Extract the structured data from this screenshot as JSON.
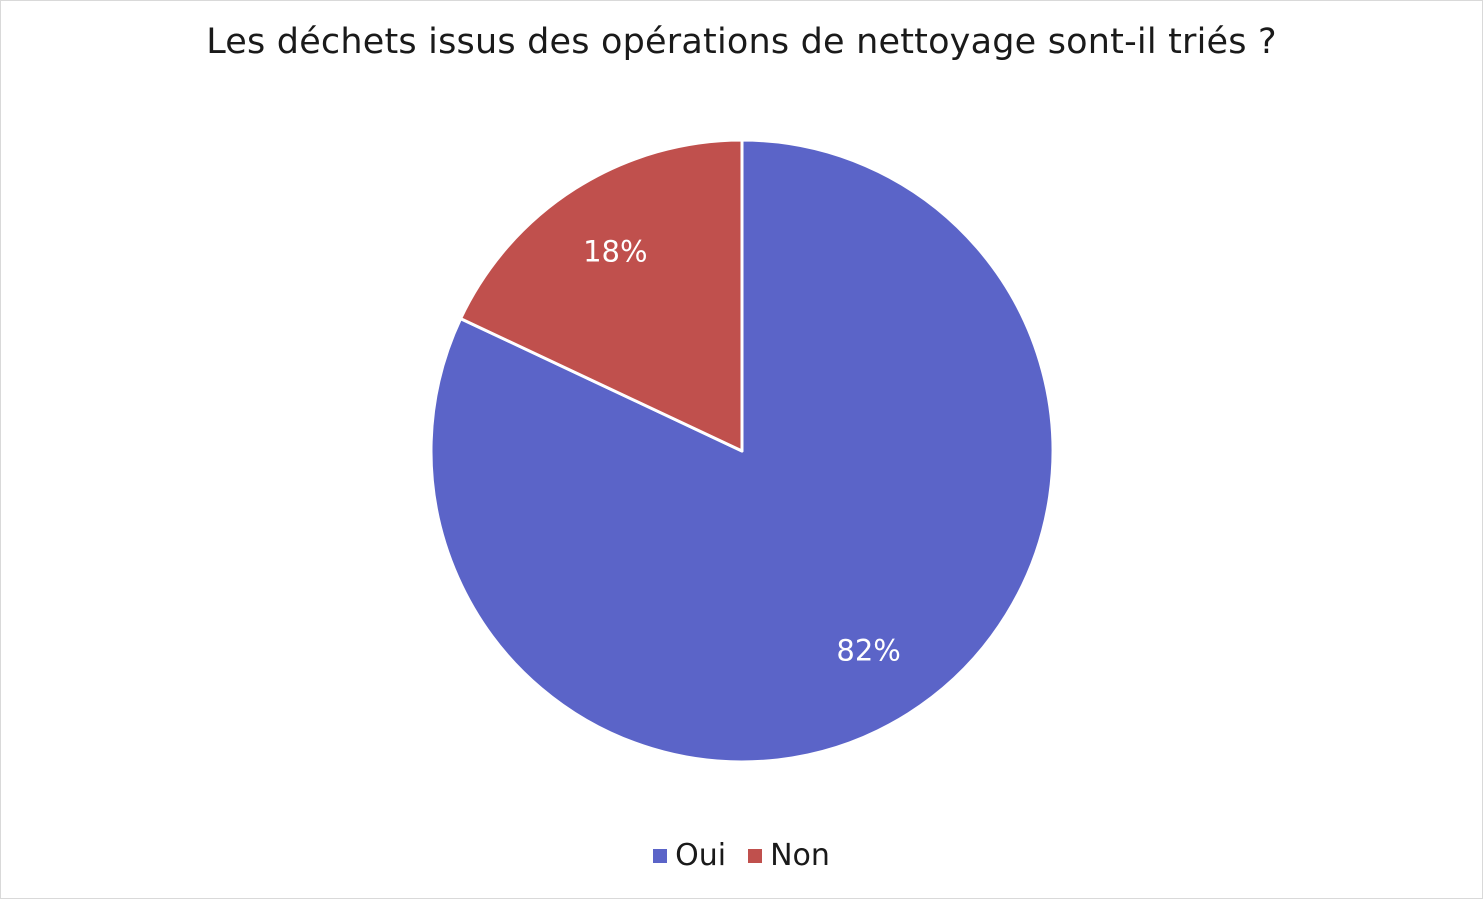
{
  "chart_data": {
    "type": "pie",
    "title": "Les déchets issus des opérations de nettoyage sont-il triés ?",
    "categories": [
      "Oui",
      "Non"
    ],
    "values": [
      82,
      18
    ],
    "data_labels": [
      "82%",
      "18%"
    ],
    "colors": [
      "#5b64c8",
      "#c0504d"
    ],
    "start_angle": "12 o'clock",
    "direction": "clockwise",
    "legend_position": "bottom"
  }
}
